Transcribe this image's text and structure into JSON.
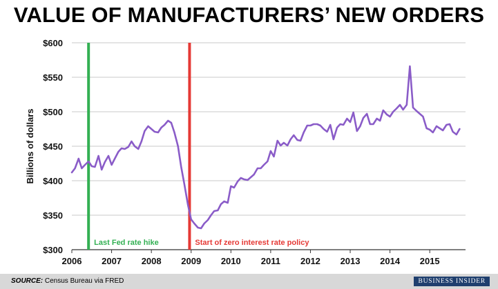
{
  "title": "VALUE OF MANUFACTURERS’ NEW ORDERS",
  "footer": {
    "source_label": "SOURCE:",
    "source_text": " Census Bureau via FRED",
    "brand": "BUSINESS INSIDER"
  },
  "colors": {
    "line": "#8a5cc8",
    "green_marker": "#33b053",
    "red_marker": "#e53935",
    "grid": "#c8c8c8"
  },
  "chart_data": {
    "type": "line",
    "title": "VALUE OF MANUFACTURERS’ NEW ORDERS",
    "ylabel": "Billions of dollars",
    "xlabel": "",
    "xlim": [
      2006.0,
      2015.9
    ],
    "ylim": [
      300,
      600
    ],
    "y_ticks": [
      {
        "value": 300,
        "label": "$300"
      },
      {
        "value": 350,
        "label": "$350"
      },
      {
        "value": 400,
        "label": "$400"
      },
      {
        "value": 450,
        "label": "$450"
      },
      {
        "value": 500,
        "label": "$500"
      },
      {
        "value": 550,
        "label": "$550"
      },
      {
        "value": 600,
        "label": "$600"
      }
    ],
    "x_ticks": [
      {
        "value": 2006,
        "label": "2006"
      },
      {
        "value": 2007,
        "label": "2007"
      },
      {
        "value": 2008,
        "label": "2008"
      },
      {
        "value": 2009,
        "label": "2009"
      },
      {
        "value": 2010,
        "label": "2010"
      },
      {
        "value": 2011,
        "label": "2011"
      },
      {
        "value": 2012,
        "label": "2012"
      },
      {
        "value": 2013,
        "label": "2013"
      },
      {
        "value": 2014,
        "label": "2014"
      },
      {
        "value": 2015,
        "label": "2015"
      }
    ],
    "grid": true,
    "markers": [
      {
        "x": 2006.42,
        "label": "Last Fed rate hike",
        "color": "#33b053"
      },
      {
        "x": 2008.96,
        "label": "Start of zero interest rate policy",
        "color": "#e53935"
      }
    ],
    "series": [
      {
        "points": [
          [
            2006.0,
            412
          ],
          [
            2006.08,
            418
          ],
          [
            2006.17,
            432
          ],
          [
            2006.25,
            418
          ],
          [
            2006.33,
            423
          ],
          [
            2006.42,
            428
          ],
          [
            2006.5,
            421
          ],
          [
            2006.58,
            420
          ],
          [
            2006.67,
            436
          ],
          [
            2006.75,
            416
          ],
          [
            2006.83,
            427
          ],
          [
            2006.92,
            436
          ],
          [
            2007.0,
            423
          ],
          [
            2007.08,
            432
          ],
          [
            2007.17,
            442
          ],
          [
            2007.25,
            447
          ],
          [
            2007.33,
            446
          ],
          [
            2007.42,
            449
          ],
          [
            2007.5,
            457
          ],
          [
            2007.58,
            450
          ],
          [
            2007.67,
            446
          ],
          [
            2007.75,
            457
          ],
          [
            2007.83,
            472
          ],
          [
            2007.92,
            479
          ],
          [
            2008.0,
            475
          ],
          [
            2008.08,
            471
          ],
          [
            2008.17,
            470
          ],
          [
            2008.25,
            477
          ],
          [
            2008.33,
            481
          ],
          [
            2008.42,
            487
          ],
          [
            2008.5,
            484
          ],
          [
            2008.58,
            470
          ],
          [
            2008.67,
            450
          ],
          [
            2008.75,
            420
          ],
          [
            2008.83,
            395
          ],
          [
            2008.92,
            365
          ],
          [
            2009.0,
            344
          ],
          [
            2009.08,
            338
          ],
          [
            2009.17,
            332
          ],
          [
            2009.25,
            331
          ],
          [
            2009.33,
            338
          ],
          [
            2009.42,
            343
          ],
          [
            2009.5,
            350
          ],
          [
            2009.58,
            356
          ],
          [
            2009.67,
            357
          ],
          [
            2009.75,
            366
          ],
          [
            2009.83,
            370
          ],
          [
            2009.92,
            368
          ],
          [
            2010.0,
            392
          ],
          [
            2010.08,
            390
          ],
          [
            2010.17,
            399
          ],
          [
            2010.25,
            404
          ],
          [
            2010.33,
            402
          ],
          [
            2010.42,
            401
          ],
          [
            2010.5,
            405
          ],
          [
            2010.58,
            409
          ],
          [
            2010.67,
            418
          ],
          [
            2010.75,
            418
          ],
          [
            2010.83,
            423
          ],
          [
            2010.92,
            428
          ],
          [
            2011.0,
            443
          ],
          [
            2011.08,
            435
          ],
          [
            2011.17,
            458
          ],
          [
            2011.25,
            451
          ],
          [
            2011.33,
            455
          ],
          [
            2011.42,
            451
          ],
          [
            2011.5,
            460
          ],
          [
            2011.58,
            466
          ],
          [
            2011.67,
            459
          ],
          [
            2011.75,
            458
          ],
          [
            2011.83,
            470
          ],
          [
            2011.92,
            480
          ],
          [
            2012.0,
            480
          ],
          [
            2012.08,
            482
          ],
          [
            2012.17,
            482
          ],
          [
            2012.25,
            480
          ],
          [
            2012.33,
            475
          ],
          [
            2012.42,
            471
          ],
          [
            2012.5,
            481
          ],
          [
            2012.58,
            460
          ],
          [
            2012.67,
            477
          ],
          [
            2012.75,
            482
          ],
          [
            2012.83,
            481
          ],
          [
            2012.92,
            490
          ],
          [
            2013.0,
            485
          ],
          [
            2013.08,
            499
          ],
          [
            2013.17,
            472
          ],
          [
            2013.25,
            479
          ],
          [
            2013.33,
            491
          ],
          [
            2013.42,
            497
          ],
          [
            2013.5,
            482
          ],
          [
            2013.58,
            482
          ],
          [
            2013.67,
            490
          ],
          [
            2013.75,
            487
          ],
          [
            2013.83,
            502
          ],
          [
            2013.92,
            496
          ],
          [
            2014.0,
            493
          ],
          [
            2014.08,
            500
          ],
          [
            2014.17,
            505
          ],
          [
            2014.25,
            510
          ],
          [
            2014.33,
            503
          ],
          [
            2014.42,
            510
          ],
          [
            2014.5,
            566
          ],
          [
            2014.58,
            506
          ],
          [
            2014.67,
            501
          ],
          [
            2014.75,
            497
          ],
          [
            2014.83,
            493
          ],
          [
            2014.92,
            476
          ],
          [
            2015.0,
            474
          ],
          [
            2015.08,
            470
          ],
          [
            2015.17,
            479
          ],
          [
            2015.25,
            476
          ],
          [
            2015.33,
            473
          ],
          [
            2015.42,
            481
          ],
          [
            2015.5,
            482
          ],
          [
            2015.58,
            471
          ],
          [
            2015.67,
            467
          ],
          [
            2015.75,
            475
          ]
        ]
      }
    ]
  }
}
